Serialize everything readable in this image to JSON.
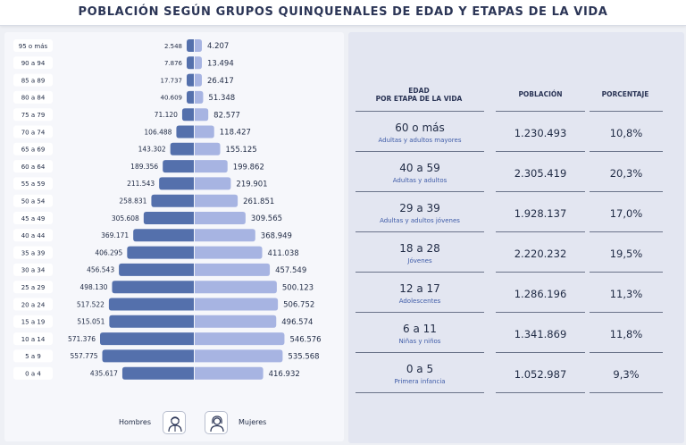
{
  "title": "POBLACIÓN SEGÚN GRUPOS QUINQUENALES DE EDAD Y ETAPAS DE LA VIDA",
  "colors": {
    "hombres": "#5470ac",
    "mujeres": "#a7b4e2",
    "text": "#1f2a44",
    "accent_text": "#3f5ca8"
  },
  "legend": {
    "hombres": "Hombres",
    "mujeres": "Mujeres",
    "hombres_icon": "man-icon",
    "mujeres_icon": "woman-icon"
  },
  "chart_data": {
    "type": "bar",
    "orientation": "horizontal-pyramid",
    "categories": [
      "95 o más",
      "90 a 94",
      "85 a 89",
      "80 a 84",
      "75 a 79",
      "70 a 74",
      "65 a 69",
      "60 a 64",
      "55 a 59",
      "50 a 54",
      "45 a 49",
      "40 a 44",
      "35 a 39",
      "30 a 34",
      "25 a 29",
      "20 a 24",
      "15 a 19",
      "10 a 14",
      "5 a 9",
      "0 a 4"
    ],
    "series": [
      {
        "name": "Hombres",
        "values": [
          2548,
          7876,
          17737,
          40609,
          71120,
          106488,
          143302,
          189356,
          211543,
          258831,
          305608,
          369171,
          406295,
          456543,
          498130,
          517522,
          515051,
          571376,
          557775,
          435617
        ],
        "labels": [
          "2.548",
          "7.876",
          "17.737",
          "40.609",
          "71.120",
          "106.488",
          "143.302",
          "189.356",
          "211.543",
          "258.831",
          "305.608",
          "369.171",
          "406.295",
          "456.543",
          "498.130",
          "517.522",
          "515.051",
          "571.376",
          "557.775",
          "435.617"
        ]
      },
      {
        "name": "Mujeres",
        "values": [
          4207,
          13494,
          26417,
          51348,
          82577,
          118427,
          155125,
          199862,
          219901,
          261851,
          309565,
          368949,
          411038,
          457549,
          500123,
          506752,
          496574,
          546576,
          535568,
          416932
        ],
        "labels": [
          "4.207",
          "13.494",
          "26.417",
          "51.348",
          "82.577",
          "118.427",
          "155.125",
          "199.862",
          "219.901",
          "261.851",
          "309.565",
          "368.949",
          "411.038",
          "457.549",
          "500.123",
          "506.752",
          "496.574",
          "546.576",
          "535.568",
          "416.932"
        ]
      }
    ],
    "xlim": [
      0,
      600000
    ]
  },
  "table": {
    "headers": {
      "edad": "EDAD\nPOR ETAPA DE LA VIDA",
      "poblacion": "POBLACIÓN",
      "porcentaje": "PORCENTAJE"
    },
    "rows": [
      {
        "rango": "60 o más",
        "etapa": "Adultas y adultos mayores",
        "poblacion": "1.230.493",
        "porcentaje": "10,8%"
      },
      {
        "rango": "40 a 59",
        "etapa": "Adultas y adultos",
        "poblacion": "2.305.419",
        "porcentaje": "20,3%"
      },
      {
        "rango": "29 a 39",
        "etapa": "Adultas y adultos jóvenes",
        "poblacion": "1.928.137",
        "porcentaje": "17,0%"
      },
      {
        "rango": "18 a 28",
        "etapa": "Jóvenes",
        "poblacion": "2.220.232",
        "porcentaje": "19,5%"
      },
      {
        "rango": "12 a 17",
        "etapa": "Adolescentes",
        "poblacion": "1.286.196",
        "porcentaje": "11,3%"
      },
      {
        "rango": "6 a 11",
        "etapa": "Niñas y niños",
        "poblacion": "1.341.869",
        "porcentaje": "11,8%"
      },
      {
        "rango": "0 a 5",
        "etapa": "Primera infancia",
        "poblacion": "1.052.987",
        "porcentaje": "9,3%"
      }
    ]
  }
}
